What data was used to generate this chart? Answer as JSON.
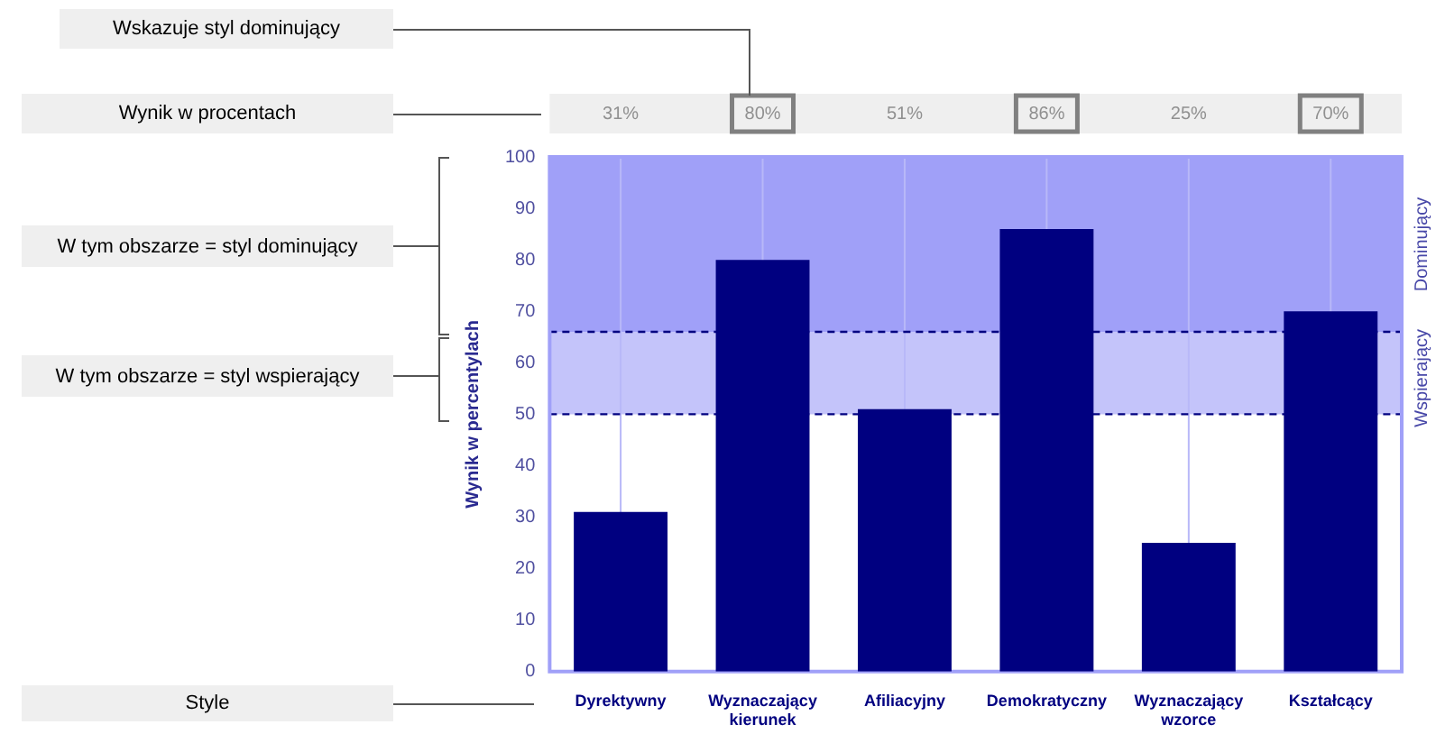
{
  "chart_data": {
    "type": "bar",
    "ylabel": "Wynik w percentylach",
    "categories": [
      "Dyrektywny",
      "Wyznaczający kierunek",
      "Afiliacyjny",
      "Demokratyczny",
      "Wyznaczający wzorce",
      "Kształcący"
    ],
    "values": [
      31,
      80,
      51,
      86,
      25,
      70
    ],
    "color": "#000080",
    "value_labels": [
      "31%",
      "80%",
      "51%",
      "86%",
      "25%",
      "70%"
    ],
    "ylim": [
      0,
      100
    ],
    "yticks": [
      0,
      10,
      20,
      30,
      40,
      50,
      60,
      70,
      80,
      90,
      100
    ],
    "grid": "x",
    "legend": false,
    "bands": [
      {
        "axis": "y",
        "from": 66,
        "to": 100,
        "label": "Dominujący",
        "color": "#a0a0f8"
      },
      {
        "axis": "y",
        "from": 50,
        "to": 66,
        "label": "Wspierający",
        "color": "#c4c4fa"
      }
    ],
    "ref_lines": [
      {
        "axis": "y",
        "value": 66,
        "color": "#000080",
        "line_style": "dashed"
      },
      {
        "axis": "y",
        "value": 50,
        "color": "#000080",
        "line_style": "dashed"
      }
    ],
    "annotations": [
      "Wskazuje styl dominujący",
      "Wynik w procentach",
      "W tym obszarze = styl dominujący",
      "W tym obszarze = styl wspierający",
      "Style"
    ]
  }
}
